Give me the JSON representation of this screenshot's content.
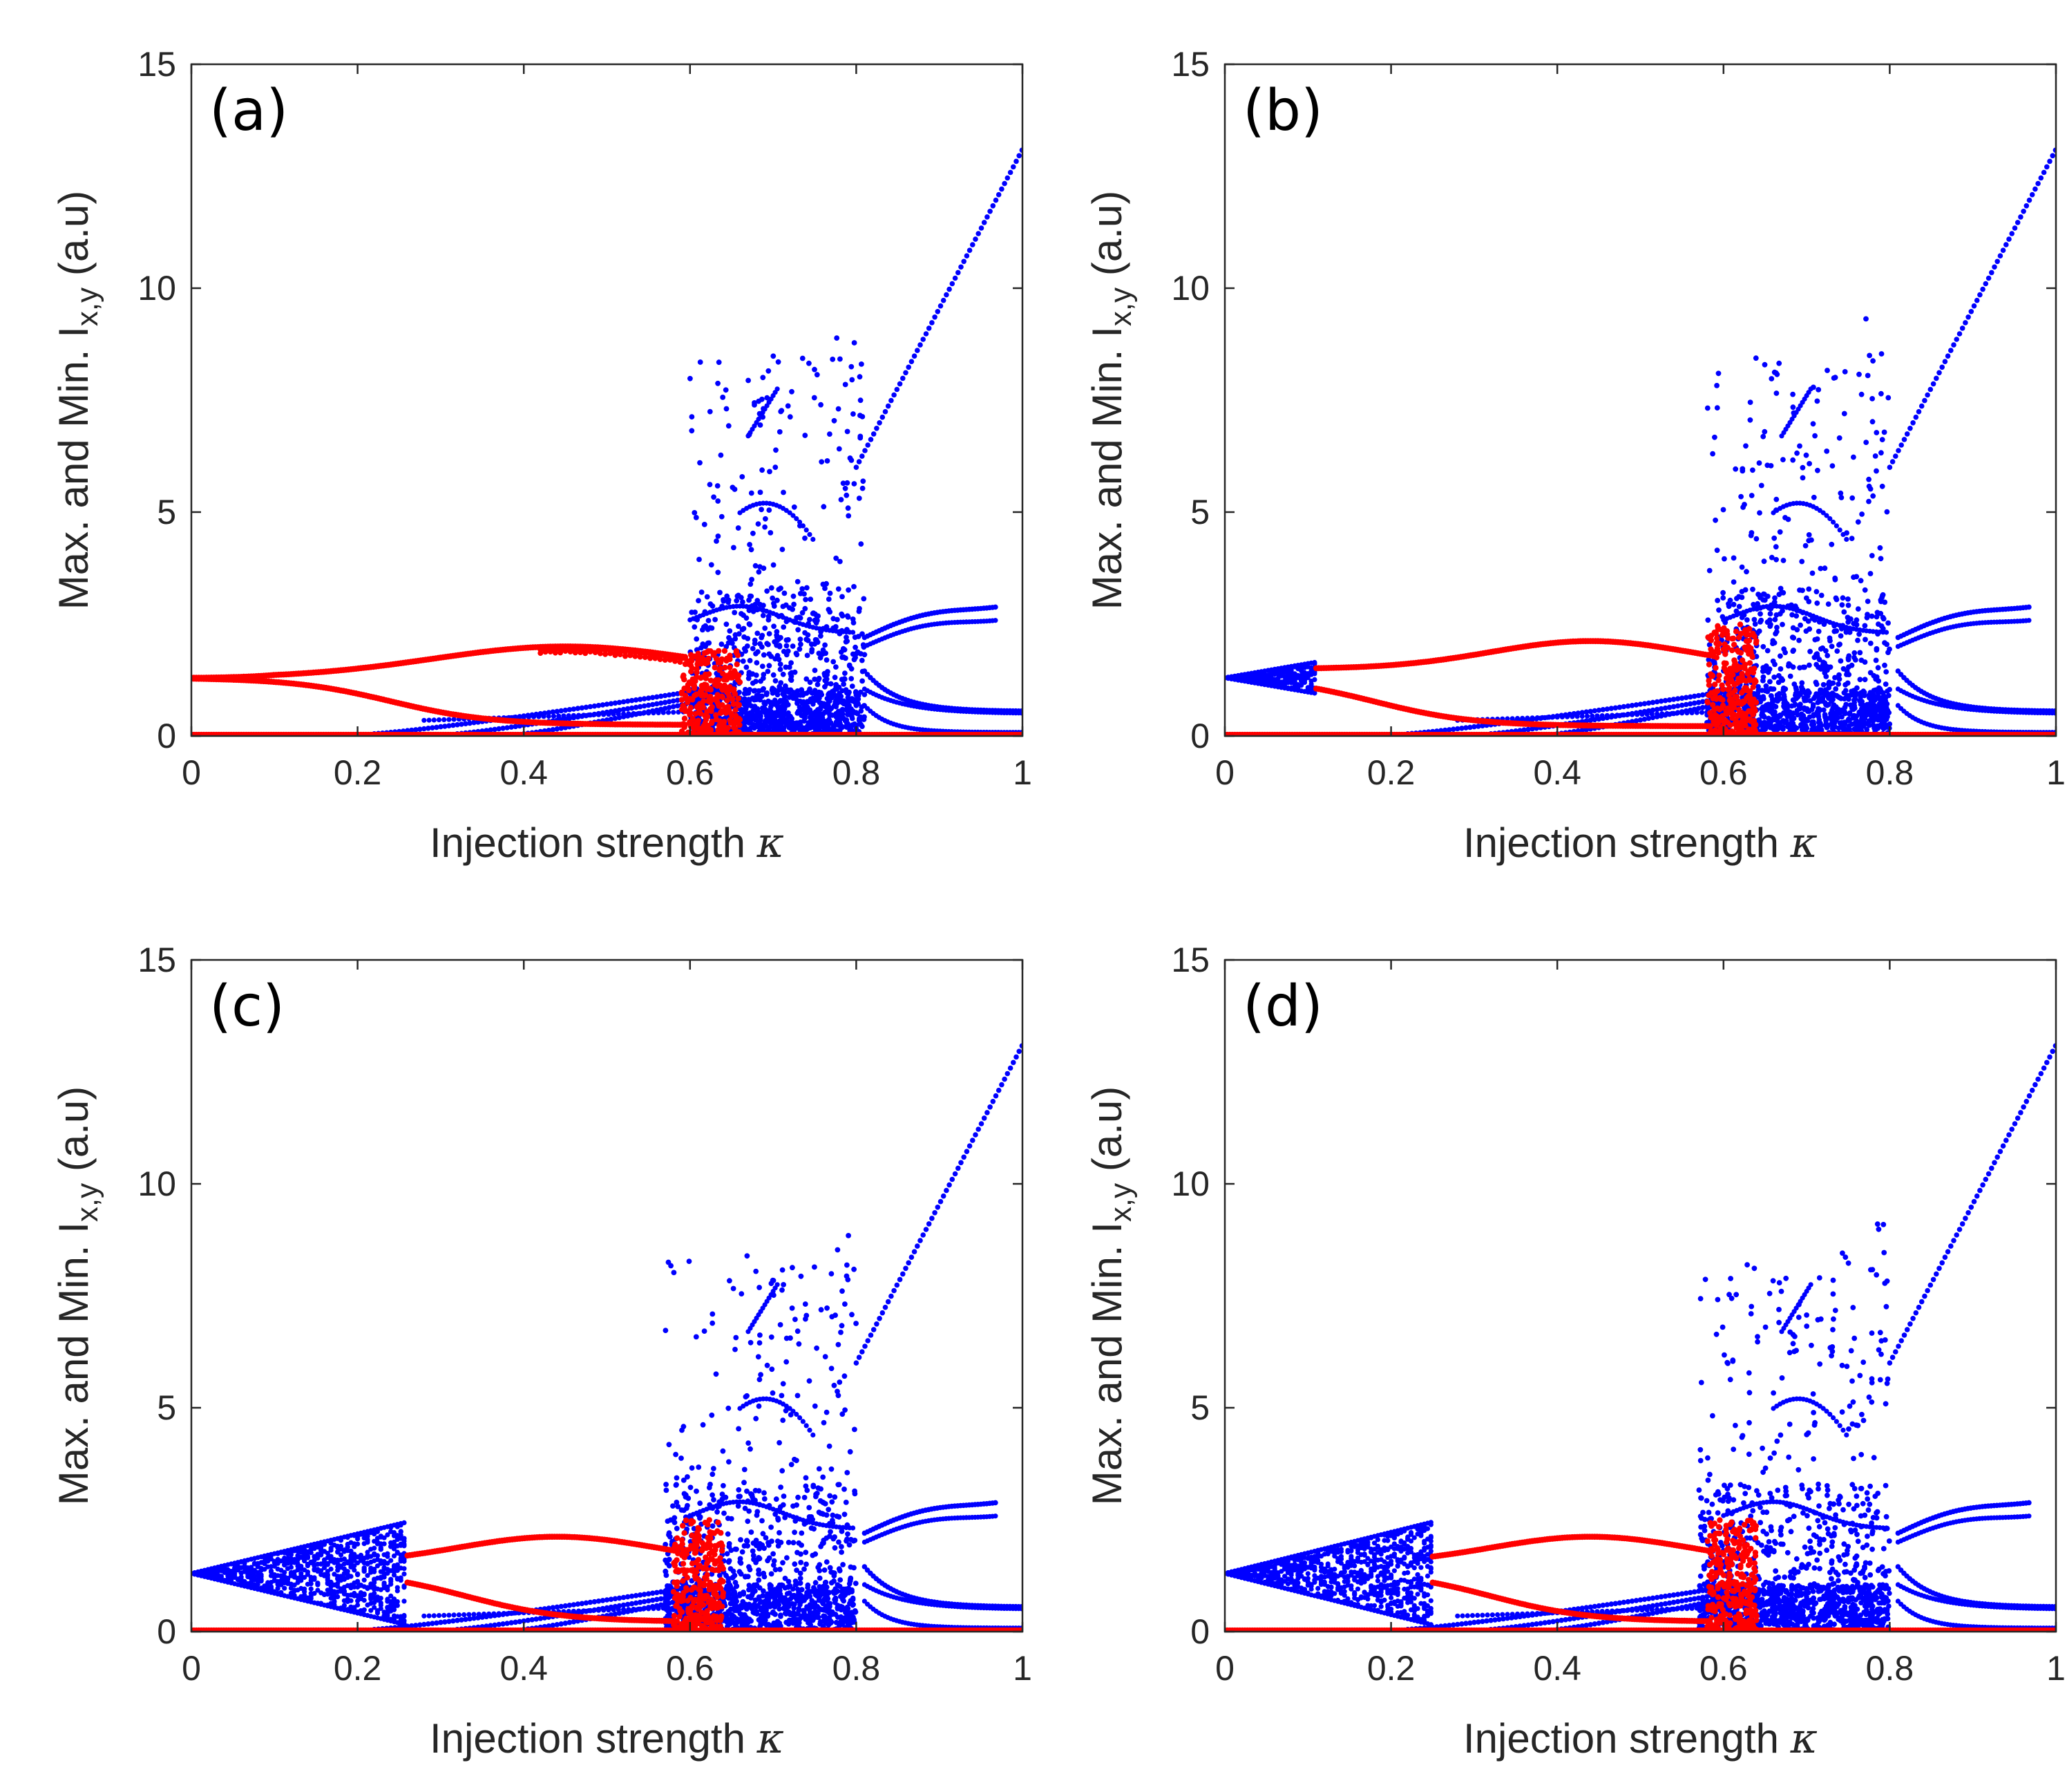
{
  "figure": {
    "colors": {
      "series_x": "#0000ff",
      "series_y": "#ff0000",
      "axes": "#262626"
    }
  },
  "chart_data": [
    {
      "type": "scatter",
      "panel_label": "(a)",
      "xlabel": "Injection strength",
      "xlabel_symbol": "κ",
      "ylabel": "Max. and Min. I",
      "ylabel_subscript": "x,y",
      "ylabel_unit": "(a.u)",
      "xlim": [
        0,
        1
      ],
      "ylim": [
        0,
        15
      ],
      "xticks": [
        0,
        0.2,
        0.4,
        0.6,
        0.8,
        1
      ],
      "xtick_labels": [
        "0",
        "0.2",
        "0.4",
        "0.6",
        "0.8",
        "1"
      ],
      "yticks": [
        0,
        5,
        10,
        15
      ],
      "ytick_labels": [
        "0",
        "5",
        "10",
        "15"
      ],
      "series": [
        {
          "name": "I_x",
          "color": "#0000ff"
        },
        {
          "name": "I_y",
          "color": "#ff0000"
        }
      ],
      "blue_fan_end": 0,
      "red_start": 0,
      "red_chaos": [
        0.59,
        0.66
      ],
      "blue_chaos": [
        0.6,
        0.81
      ],
      "spike_max": 9.2
    },
    {
      "type": "scatter",
      "panel_label": "(b)",
      "xlabel": "Injection strength",
      "xlabel_symbol": "κ",
      "ylabel": "Max. and Min. I",
      "ylabel_subscript": "x,y",
      "ylabel_unit": "(a.u)",
      "xlim": [
        0,
        1
      ],
      "ylim": [
        0,
        15
      ],
      "xticks": [
        0,
        0.2,
        0.4,
        0.6,
        0.8,
        1
      ],
      "xtick_labels": [
        "0",
        "0.2",
        "0.4",
        "0.6",
        "0.8",
        "1"
      ],
      "yticks": [
        0,
        5,
        10,
        15
      ],
      "ytick_labels": [
        "0",
        "5",
        "10",
        "15"
      ],
      "series": [
        {
          "name": "I_x",
          "color": "#0000ff"
        },
        {
          "name": "I_y",
          "color": "#ff0000"
        }
      ],
      "blue_fan_end": 0.11,
      "red_start": 0.11,
      "red_chaos": [
        0.58,
        0.64
      ],
      "blue_chaos": [
        0.58,
        0.8
      ],
      "spike_max": 9.4
    },
    {
      "type": "scatter",
      "panel_label": "(c)",
      "xlabel": "Injection strength",
      "xlabel_symbol": "κ",
      "ylabel": "Max. and Min. I",
      "ylabel_subscript": "x,y",
      "ylabel_unit": "(a.u)",
      "xlim": [
        0,
        1
      ],
      "ylim": [
        0,
        15
      ],
      "xticks": [
        0,
        0.2,
        0.4,
        0.6,
        0.8,
        1
      ],
      "xtick_labels": [
        "0",
        "0.2",
        "0.4",
        "0.6",
        "0.8",
        "1"
      ],
      "yticks": [
        0,
        5,
        10,
        15
      ],
      "ytick_labels": [
        "0",
        "5",
        "10",
        "15"
      ],
      "series": [
        {
          "name": "I_x",
          "color": "#0000ff"
        },
        {
          "name": "I_y",
          "color": "#ff0000"
        }
      ],
      "blue_fan_end": 0.26,
      "red_start": 0.26,
      "red_chaos": [
        0.58,
        0.64
      ],
      "blue_chaos": [
        0.57,
        0.8
      ],
      "spike_max": 9.2
    },
    {
      "type": "scatter",
      "panel_label": "(d)",
      "xlabel": "Injection strength",
      "xlabel_symbol": "κ",
      "ylabel": "Max. and Min. I",
      "ylabel_subscript": "x,y",
      "ylabel_unit": "(a.u)",
      "xlim": [
        0,
        1
      ],
      "ylim": [
        0,
        15
      ],
      "xticks": [
        0,
        0.2,
        0.4,
        0.6,
        0.8,
        1
      ],
      "xtick_labels": [
        "0",
        "0.2",
        "0.4",
        "0.6",
        "0.8",
        "1"
      ],
      "yticks": [
        0,
        5,
        10,
        15
      ],
      "ytick_labels": [
        "0",
        "5",
        "10",
        "15"
      ],
      "series": [
        {
          "name": "I_x",
          "color": "#0000ff"
        },
        {
          "name": "I_y",
          "color": "#ff0000"
        }
      ],
      "blue_fan_end": 0.25,
      "red_start": 0.25,
      "red_chaos": [
        0.58,
        0.64
      ],
      "blue_chaos": [
        0.57,
        0.8
      ],
      "spike_max": 9.3
    }
  ]
}
